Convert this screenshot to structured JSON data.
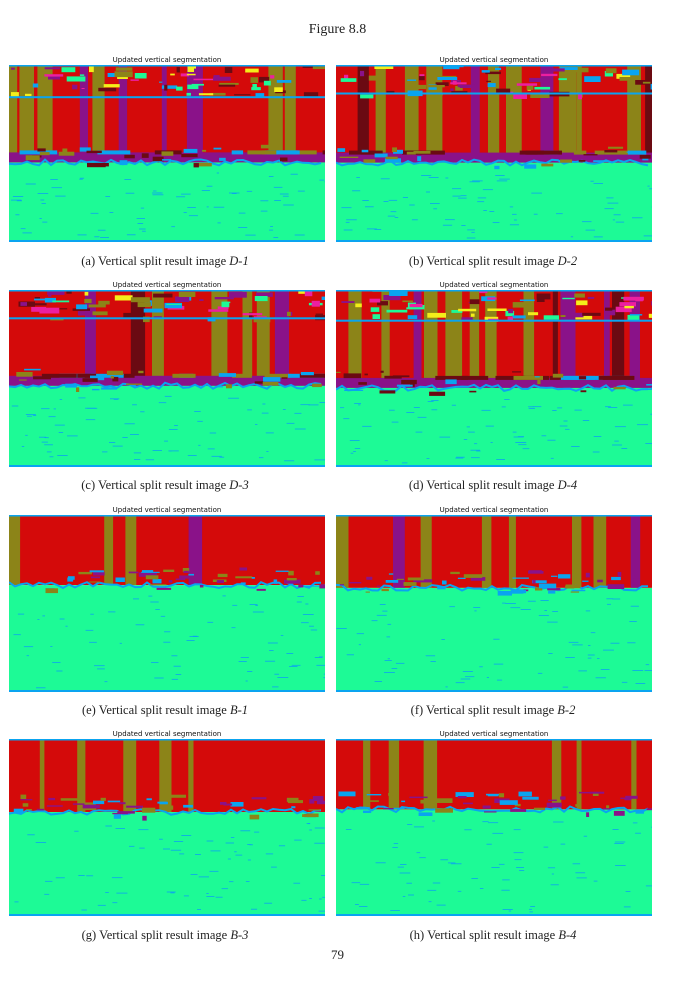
{
  "figure_title": "Figure 8.8",
  "page_number": "79",
  "panel_title": "Updated vertical segmentation",
  "colors": {
    "red": "#d40a0a",
    "olive": "#8c8418",
    "purple": "#8a1289",
    "cyan": "#0aa4f0",
    "green": "#1dfa96",
    "maroon": "#6b0a12",
    "magenta": "#ec1fa0",
    "yellow": "#f4ee1a"
  },
  "panels": [
    {
      "id": "a",
      "caption_prefix": "(a) Vertical split result image ",
      "caption_label": "D-1"
    },
    {
      "id": "b",
      "caption_prefix": "(b) Vertical split result image ",
      "caption_label": "D-2"
    },
    {
      "id": "c",
      "caption_prefix": "(c) Vertical split result image ",
      "caption_label": "D-3"
    },
    {
      "id": "d",
      "caption_prefix": "(d) Vertical split result image ",
      "caption_label": "D-4"
    },
    {
      "id": "e",
      "caption_prefix": "(e) Vertical split result image ",
      "caption_label": "B-1"
    },
    {
      "id": "f",
      "caption_prefix": "(f) Vertical split result image ",
      "caption_label": "B-2"
    },
    {
      "id": "g",
      "caption_prefix": "(g) Vertical split result image ",
      "caption_label": "B-3"
    },
    {
      "id": "h",
      "caption_prefix": "(h) Vertical split result image ",
      "caption_label": "B-4"
    }
  ]
}
